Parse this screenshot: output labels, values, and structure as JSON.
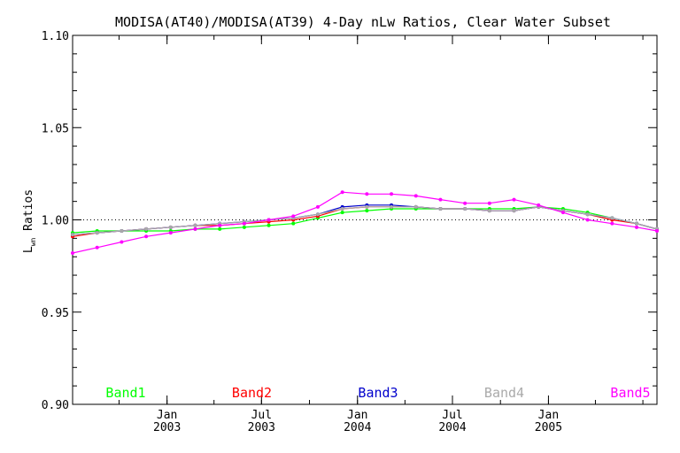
{
  "chart_data": {
    "type": "line",
    "title": "MODISA(AT40)/MODISA(AT39) 4-Day nLw Ratios, Clear Water Subset",
    "ylabel_main": "L",
    "ylabel_sub": "wn",
    "ylabel_rest": " Ratios",
    "ylim": [
      0.9,
      1.1
    ],
    "y_ticks": [
      "0.90",
      "0.95",
      "1.00",
      "1.05",
      "1.10"
    ],
    "x_ticks": [
      {
        "month": "Jan",
        "year": "2003",
        "date": "2003-01-01"
      },
      {
        "month": "Jul",
        "year": "2003",
        "date": "2003-07-01"
      },
      {
        "month": "Jan",
        "year": "2004",
        "date": "2004-01-01"
      },
      {
        "month": "Jul",
        "year": "2004",
        "date": "2004-07-01"
      },
      {
        "month": "Jan",
        "year": "2005",
        "date": "2005-01-01"
      }
    ],
    "xlim": [
      "2002-07-04",
      "2005-07-28"
    ],
    "reference_line": 1.0,
    "x": [
      "2002-07-04",
      "2002-08-20",
      "2002-10-06",
      "2002-11-22",
      "2003-01-08",
      "2003-02-24",
      "2003-04-12",
      "2003-05-29",
      "2003-07-15",
      "2003-08-31",
      "2003-10-17",
      "2003-12-03",
      "2004-01-19",
      "2004-03-06",
      "2004-04-22",
      "2004-06-08",
      "2004-07-25",
      "2004-09-10",
      "2004-10-27",
      "2004-12-13",
      "2005-01-29",
      "2005-03-17",
      "2005-05-03",
      "2005-06-19",
      "2005-07-28"
    ],
    "series": [
      {
        "name": "Band1",
        "color": "#00ff00",
        "values": [
          0.993,
          0.994,
          0.994,
          0.994,
          0.994,
          0.995,
          0.995,
          0.996,
          0.997,
          0.998,
          1.001,
          1.004,
          1.005,
          1.006,
          1.006,
          1.006,
          1.006,
          1.006,
          1.006,
          1.007,
          1.006,
          1.004,
          1.001,
          0.998,
          0.995
        ]
      },
      {
        "name": "Band2",
        "color": "#ff0000",
        "values": [
          0.991,
          0.993,
          0.994,
          0.995,
          0.996,
          0.997,
          0.997,
          0.998,
          0.999,
          1.0,
          1.002,
          1.006,
          1.007,
          1.007,
          1.007,
          1.006,
          1.006,
          1.005,
          1.005,
          1.007,
          1.005,
          1.003,
          1.0,
          0.998,
          0.995
        ]
      },
      {
        "name": "Band3",
        "color": "#0000cc",
        "values": [
          0.992,
          0.993,
          0.994,
          0.995,
          0.996,
          0.997,
          0.998,
          0.999,
          1.0,
          1.001,
          1.003,
          1.007,
          1.008,
          1.008,
          1.007,
          1.006,
          1.006,
          1.005,
          1.005,
          1.007,
          1.005,
          1.003,
          1.001,
          0.998,
          0.995
        ]
      },
      {
        "name": "Band4",
        "color": "#aaaaaa",
        "values": [
          0.992,
          0.993,
          0.994,
          0.995,
          0.996,
          0.997,
          0.998,
          0.999,
          1.0,
          1.001,
          1.003,
          1.006,
          1.007,
          1.007,
          1.007,
          1.006,
          1.006,
          1.005,
          1.005,
          1.007,
          1.005,
          1.003,
          1.001,
          0.998,
          0.995
        ]
      },
      {
        "name": "Band5",
        "color": "#ff00ff",
        "values": [
          0.982,
          0.985,
          0.988,
          0.991,
          0.993,
          0.995,
          0.997,
          0.998,
          1.0,
          1.002,
          1.007,
          1.015,
          1.014,
          1.014,
          1.013,
          1.011,
          1.009,
          1.009,
          1.011,
          1.008,
          1.004,
          1.0,
          0.998,
          0.996,
          0.994
        ]
      }
    ]
  }
}
